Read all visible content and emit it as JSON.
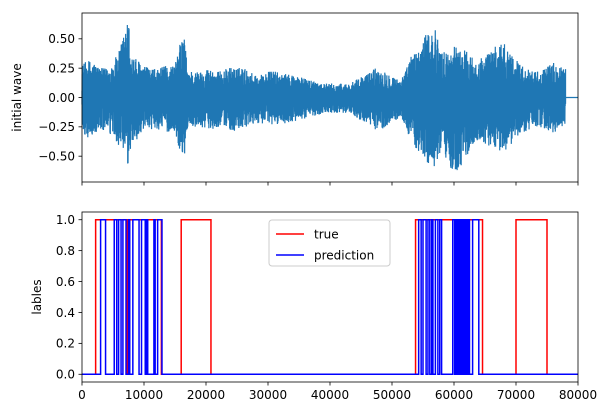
{
  "chart_data": [
    {
      "type": "line",
      "ylabel": "initial wave",
      "xlabel": "",
      "xlim": [
        0,
        80000
      ],
      "ylim": [
        -0.72,
        0.72
      ],
      "yticks": [
        -0.5,
        -0.25,
        0.0,
        0.25,
        0.5
      ],
      "ytick_labels": [
        "−0.50",
        "−0.25",
        "0.00",
        "0.25",
        "0.50"
      ],
      "xticks": [
        0,
        10000,
        20000,
        30000,
        40000,
        50000,
        60000,
        70000,
        80000
      ],
      "show_xtick_labels": false,
      "grid": false,
      "series": [
        {
          "color": "#1f77b4",
          "signal_end": 78000,
          "envelope": {
            "x": [
              0,
              1000,
              2000,
              3000,
              4000,
              5000,
              6000,
              7000,
              7500,
              8000,
              9000,
              10000,
              11000,
              12000,
              13000,
              14000,
              15000,
              16000,
              16500,
              17000,
              18000,
              19000,
              20000,
              21000,
              22000,
              23000,
              24000,
              25000,
              26000,
              27000,
              28000,
              29000,
              30000,
              31000,
              32000,
              33000,
              34000,
              35000,
              36000,
              37000,
              38000,
              39000,
              40000,
              41000,
              42000,
              43000,
              44000,
              45000,
              46000,
              47000,
              48000,
              49000,
              50000,
              51000,
              52000,
              53000,
              54000,
              55000,
              56000,
              57000,
              58000,
              59000,
              60000,
              61000,
              62000,
              63000,
              64000,
              65000,
              66000,
              67000,
              68000,
              69000,
              70000,
              71000,
              72000,
              73000,
              74000,
              75000,
              76000,
              77000,
              78000
            ],
            "upper": [
              0.28,
              0.32,
              0.3,
              0.25,
              0.25,
              0.3,
              0.4,
              0.6,
              0.66,
              0.38,
              0.32,
              0.27,
              0.25,
              0.24,
              0.26,
              0.28,
              0.28,
              0.5,
              0.55,
              0.25,
              0.22,
              0.22,
              0.25,
              0.24,
              0.22,
              0.24,
              0.26,
              0.25,
              0.26,
              0.22,
              0.2,
              0.2,
              0.22,
              0.23,
              0.2,
              0.2,
              0.2,
              0.18,
              0.16,
              0.15,
              0.14,
              0.12,
              0.12,
              0.12,
              0.12,
              0.12,
              0.14,
              0.18,
              0.2,
              0.25,
              0.25,
              0.22,
              0.2,
              0.15,
              0.2,
              0.35,
              0.4,
              0.48,
              0.6,
              0.58,
              0.4,
              0.38,
              0.45,
              0.42,
              0.4,
              0.35,
              0.33,
              0.36,
              0.4,
              0.45,
              0.48,
              0.4,
              0.32,
              0.28,
              0.25,
              0.22,
              0.24,
              0.26,
              0.3,
              0.28,
              0.25
            ],
            "lower": [
              -0.3,
              -0.35,
              -0.32,
              -0.28,
              -0.3,
              -0.35,
              -0.42,
              -0.55,
              -0.62,
              -0.4,
              -0.35,
              -0.3,
              -0.28,
              -0.27,
              -0.28,
              -0.3,
              -0.3,
              -0.5,
              -0.52,
              -0.27,
              -0.25,
              -0.25,
              -0.26,
              -0.27,
              -0.25,
              -0.25,
              -0.28,
              -0.3,
              -0.28,
              -0.24,
              -0.22,
              -0.22,
              -0.24,
              -0.24,
              -0.22,
              -0.22,
              -0.22,
              -0.2,
              -0.18,
              -0.16,
              -0.15,
              -0.13,
              -0.13,
              -0.13,
              -0.13,
              -0.13,
              -0.16,
              -0.2,
              -0.22,
              -0.27,
              -0.28,
              -0.25,
              -0.22,
              -0.18,
              -0.22,
              -0.38,
              -0.45,
              -0.52,
              -0.58,
              -0.6,
              -0.5,
              -0.55,
              -0.66,
              -0.6,
              -0.5,
              -0.42,
              -0.38,
              -0.4,
              -0.42,
              -0.45,
              -0.48,
              -0.42,
              -0.35,
              -0.3,
              -0.28,
              -0.25,
              -0.26,
              -0.28,
              -0.3,
              -0.28,
              -0.25
            ]
          }
        }
      ]
    },
    {
      "type": "line",
      "ylabel": "lables",
      "xlabel": "",
      "xlim": [
        0,
        80000
      ],
      "ylim": [
        -0.05,
        1.05
      ],
      "yticks": [
        0.0,
        0.2,
        0.4,
        0.6,
        0.8,
        1.0
      ],
      "ytick_labels": [
        "0.0",
        "0.2",
        "0.4",
        "0.6",
        "0.8",
        "1.0"
      ],
      "xticks": [
        0,
        10000,
        20000,
        30000,
        40000,
        50000,
        60000,
        70000,
        80000
      ],
      "xtick_labels": [
        "0",
        "10000",
        "20000",
        "30000",
        "40000",
        "50000",
        "60000",
        "70000",
        "80000"
      ],
      "grid": false,
      "legend": {
        "placement": "top-center"
      },
      "series": [
        {
          "name": "true",
          "color": "#ff0000",
          "segments": [
            [
              2200,
              7300
            ],
            [
              7700,
              12800
            ],
            [
              16000,
              20800
            ],
            [
              53800,
              64600
            ],
            [
              70000,
              75000
            ]
          ]
        },
        {
          "name": "prediction",
          "color": "#0000ff",
          "segments": [
            [
              3000,
              3800
            ],
            [
              5200,
              5600
            ],
            [
              5900,
              6300
            ],
            [
              6600,
              7100
            ],
            [
              7500,
              7700
            ],
            [
              8200,
              9200
            ],
            [
              9600,
              10200
            ],
            [
              10400,
              10600
            ],
            [
              11600,
              11800
            ],
            [
              12200,
              12900
            ],
            [
              54300,
              54700
            ],
            [
              55000,
              55500
            ],
            [
              55800,
              56100
            ],
            [
              56400,
              56600
            ],
            [
              57000,
              57400
            ],
            [
              57700,
              58000
            ],
            [
              59800,
              60100
            ],
            [
              60300,
              60500
            ],
            [
              60700,
              60900
            ],
            [
              61100,
              61300
            ],
            [
              61500,
              61700
            ],
            [
              61900,
              62100
            ],
            [
              62300,
              62500
            ],
            [
              63000,
              64000
            ]
          ]
        }
      ]
    }
  ]
}
